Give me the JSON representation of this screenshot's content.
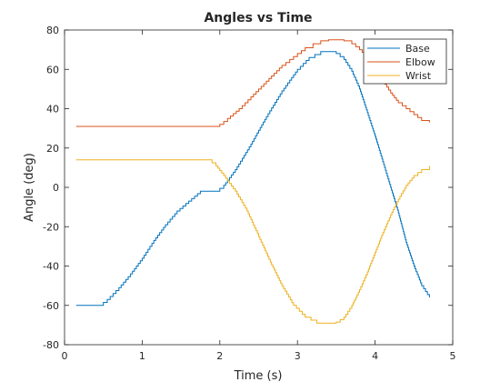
{
  "chart_data": {
    "type": "line",
    "title": "Angles vs Time",
    "xlabel": "Time (s)",
    "ylabel": "Angle (deg)",
    "xlim": [
      0,
      5
    ],
    "ylim": [
      -80,
      80
    ],
    "xticks": [
      0,
      1,
      2,
      3,
      4,
      5
    ],
    "yticks": [
      -80,
      -60,
      -40,
      -20,
      0,
      20,
      40,
      60,
      80
    ],
    "xtick_labels": [
      "0",
      "1",
      "2",
      "3",
      "4",
      "5"
    ],
    "ytick_labels": [
      "-80",
      "-60",
      "-40",
      "-20",
      "0",
      "20",
      "40",
      "60",
      "80"
    ],
    "grid": false,
    "legend_position": "top-right",
    "series": [
      {
        "name": "Base",
        "color": "#0072BD",
        "x": [
          0.15,
          0.3,
          0.45,
          0.55,
          0.7,
          0.85,
          1.0,
          1.15,
          1.3,
          1.45,
          1.6,
          1.75,
          1.85,
          1.95,
          2.05,
          2.2,
          2.4,
          2.6,
          2.8,
          3.0,
          3.15,
          3.3,
          3.4,
          3.5,
          3.6,
          3.7,
          3.8,
          3.9,
          4.0,
          4.1,
          4.2,
          4.3,
          4.4,
          4.5,
          4.6,
          4.7
        ],
        "y": [
          -60,
          -60,
          -60,
          -57,
          -51,
          -44,
          -36,
          -27,
          -19,
          -12,
          -7,
          -2,
          -2,
          -2,
          1,
          9,
          22,
          36,
          49,
          60,
          66,
          69,
          69,
          68,
          65,
          59,
          50,
          38,
          26,
          13,
          0,
          -13,
          -28,
          -40,
          -50,
          -56
        ]
      },
      {
        "name": "Elbow",
        "color": "#D95319",
        "x": [
          0.15,
          0.4,
          0.7,
          1.0,
          1.3,
          1.6,
          1.85,
          2.0,
          2.1,
          2.25,
          2.4,
          2.6,
          2.8,
          3.0,
          3.1,
          3.2,
          3.3,
          3.4,
          3.5,
          3.6,
          3.7,
          3.8,
          3.9,
          4.0,
          4.1,
          4.2,
          4.3,
          4.4,
          4.5,
          4.6,
          4.7
        ],
        "y": [
          31,
          31,
          31,
          31,
          31,
          31,
          31,
          32,
          35,
          40,
          46,
          54,
          62,
          68,
          71,
          73,
          74.5,
          75,
          75,
          74.5,
          73,
          70,
          66,
          61,
          54,
          48,
          43,
          40,
          37,
          34,
          33
        ]
      },
      {
        "name": "Wrist",
        "color": "#EDB120",
        "x": [
          0.15,
          0.4,
          0.7,
          1.0,
          1.3,
          1.6,
          1.85,
          1.95,
          2.05,
          2.2,
          2.35,
          2.5,
          2.65,
          2.8,
          2.95,
          3.1,
          3.25,
          3.4,
          3.5,
          3.6,
          3.7,
          3.8,
          3.9,
          4.0,
          4.1,
          4.2,
          4.3,
          4.4,
          4.5,
          4.6,
          4.7
        ],
        "y": [
          14,
          14,
          14,
          14,
          14,
          14,
          14,
          11,
          6,
          -2,
          -12,
          -25,
          -38,
          -50,
          -60,
          -66,
          -69,
          -69,
          -68.5,
          -66,
          -60,
          -52,
          -43,
          -33,
          -23,
          -14,
          -6,
          1,
          6,
          9,
          11
        ]
      }
    ]
  }
}
